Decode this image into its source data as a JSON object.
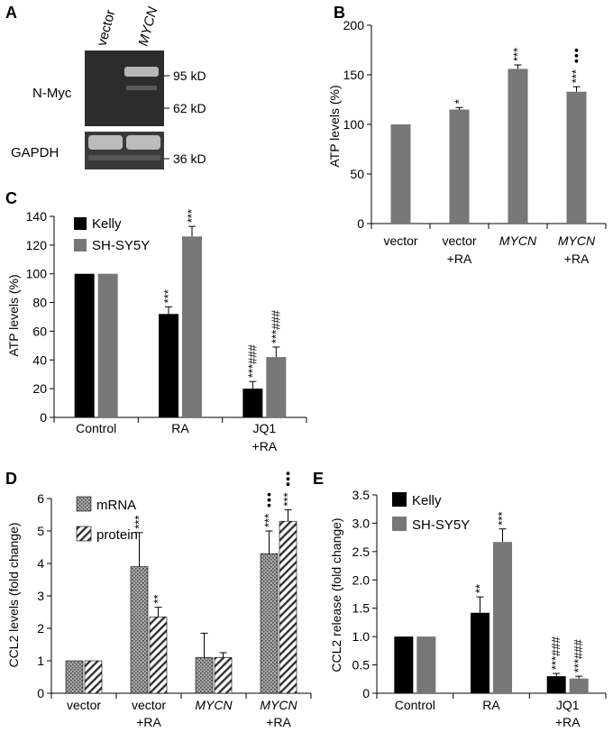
{
  "colors": {
    "black": "#000000",
    "gray": "#777777",
    "blot_bg": "#2c2c2c",
    "blot_band": "#bcbcbc",
    "text": "#000000"
  },
  "panels": {
    "A": {
      "letter": "A",
      "lanes": [
        "vector",
        "MYCN"
      ],
      "blot_labels": [
        "N-Myc",
        "GAPDH"
      ],
      "markers": [
        "95 kD",
        "62 kD",
        "36 kD"
      ]
    },
    "B": {
      "letter": "B"
    },
    "C": {
      "letter": "C"
    },
    "D": {
      "letter": "D"
    },
    "E": {
      "letter": "E"
    }
  },
  "chart_data": [
    {
      "panel": "B",
      "type": "bar",
      "ylabel": "ATP levels (%)",
      "ylim": [
        0,
        200
      ],
      "yticks": [
        0,
        50,
        100,
        150,
        200
      ],
      "categories": [
        {
          "line1": "vector",
          "line2": "",
          "italic": false
        },
        {
          "line1": "vector",
          "line2": "+RA",
          "italic": false
        },
        {
          "line1": "MYCN",
          "line2": "",
          "italic": true
        },
        {
          "line1": "MYCN",
          "line2": "+RA",
          "italic": true
        }
      ],
      "series": [
        {
          "name": "ATP",
          "color": "#777777",
          "values": [
            100,
            115,
            156,
            133
          ],
          "errors": [
            0,
            2,
            4,
            5
          ],
          "annotations": [
            "",
            "*",
            "***",
            "***"
          ],
          "dots": [
            0,
            0,
            0,
            3
          ]
        }
      ]
    },
    {
      "panel": "C",
      "type": "bar",
      "ylabel": "ATP levels (%)",
      "ylim": [
        0,
        140
      ],
      "yticks": [
        0,
        20,
        40,
        60,
        80,
        100,
        120,
        140
      ],
      "categories": [
        {
          "line1": "Control",
          "line2": "",
          "italic": false
        },
        {
          "line1": "RA",
          "line2": "",
          "italic": false
        },
        {
          "line1": "JQ1",
          "line2": "+RA",
          "italic": false
        }
      ],
      "legend": [
        "Kelly",
        "SH-SY5Y"
      ],
      "series": [
        {
          "name": "Kelly",
          "color": "#000000",
          "values": [
            100,
            72,
            20
          ],
          "errors": [
            0,
            5,
            5
          ],
          "annotations": [
            "",
            "***",
            "***###"
          ],
          "dots": [
            0,
            0,
            0
          ]
        },
        {
          "name": "SH-SY5Y",
          "color": "#777777",
          "values": [
            100,
            126,
            42
          ],
          "errors": [
            0,
            7,
            7
          ],
          "annotations": [
            "",
            "***",
            "***###"
          ],
          "dots": [
            0,
            0,
            0
          ]
        }
      ]
    },
    {
      "panel": "D",
      "type": "bar",
      "ylabel": "CCL2 levels (fold change)",
      "ylim": [
        0,
        6
      ],
      "yticks": [
        0,
        1,
        2,
        3,
        4,
        5,
        6
      ],
      "categories": [
        {
          "line1": "vector",
          "line2": "",
          "italic": false
        },
        {
          "line1": "vector",
          "line2": "+RA",
          "italic": false
        },
        {
          "line1": "MYCN",
          "line2": "",
          "italic": true
        },
        {
          "line1": "MYCN",
          "line2": "+RA",
          "italic": true
        }
      ],
      "legend": [
        "mRNA",
        "protein"
      ],
      "series": [
        {
          "name": "mRNA",
          "color": "#999999",
          "pattern": "dots",
          "values": [
            1.0,
            3.9,
            1.1,
            4.3
          ],
          "errors": [
            0,
            1.05,
            0.75,
            0.7
          ],
          "annotations": [
            "",
            "***",
            "",
            "***"
          ],
          "dots": [
            0,
            0,
            0,
            3
          ]
        },
        {
          "name": "protein",
          "color": "#ffffff",
          "pattern": "stripes",
          "values": [
            1.0,
            2.35,
            1.1,
            5.3
          ],
          "errors": [
            0,
            0.3,
            0.15,
            0.35
          ],
          "annotations": [
            "",
            "**",
            "",
            "***"
          ],
          "dots": [
            0,
            0,
            0,
            3
          ]
        }
      ]
    },
    {
      "panel": "E",
      "type": "bar",
      "ylabel": "CCL2 release (fold change)",
      "ylim": [
        0,
        3.5
      ],
      "yticks": [
        "0",
        "0.5",
        "1.0",
        "1.5",
        "2.0",
        "2.5",
        "3.0",
        "3.5"
      ],
      "categories": [
        {
          "line1": "Control",
          "line2": "",
          "italic": false
        },
        {
          "line1": "RA",
          "line2": "",
          "italic": false
        },
        {
          "line1": "JQ1",
          "line2": "+RA",
          "italic": false
        }
      ],
      "legend": [
        "Kelly",
        "SH-SY5Y"
      ],
      "series": [
        {
          "name": "Kelly",
          "color": "#000000",
          "values": [
            1.0,
            1.42,
            0.3
          ],
          "errors": [
            0,
            0.28,
            0.05
          ],
          "annotations": [
            "",
            "**",
            "***###"
          ],
          "dots": [
            0,
            0,
            0
          ]
        },
        {
          "name": "SH-SY5Y",
          "color": "#777777",
          "values": [
            1.0,
            2.67,
            0.26
          ],
          "errors": [
            0,
            0.23,
            0.04
          ],
          "annotations": [
            "",
            "***",
            "***###"
          ],
          "dots": [
            0,
            0,
            0
          ]
        }
      ]
    }
  ]
}
